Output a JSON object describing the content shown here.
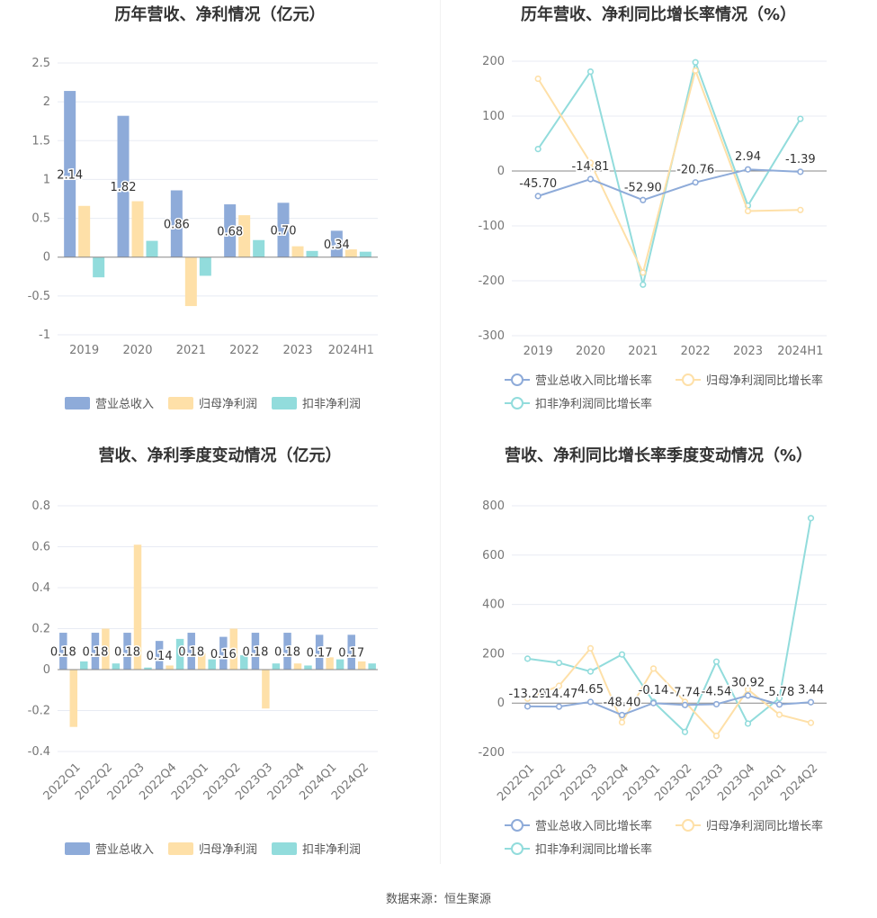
{
  "source_text": "数据来源：恒生聚源",
  "colors": {
    "revenue": "#8eabd9",
    "net_profit": "#fee0a8",
    "deducted": "#92dcdc",
    "grid": "#e8ebf3",
    "axis": "#888888",
    "label": "#333333"
  },
  "chart_data": [
    {
      "id": "annual-amounts",
      "type": "bar",
      "title": "历年营收、净利情况（亿元）",
      "categories": [
        "2019",
        "2020",
        "2021",
        "2022",
        "2023",
        "2024H1"
      ],
      "ylim": [
        -1,
        2.5
      ],
      "yticks": [
        "-1",
        "-0.5",
        "0",
        "0.5",
        "1",
        "1.5",
        "2",
        "2.5"
      ],
      "series": [
        {
          "name": "营业总收入",
          "values": [
            2.14,
            1.82,
            0.86,
            0.68,
            0.7,
            0.34
          ],
          "labels": [
            "2.14",
            "1.82",
            "0.86",
            "0.68",
            "0.70",
            "0.34"
          ]
        },
        {
          "name": "归母净利润",
          "values": [
            0.66,
            0.72,
            -0.63,
            0.54,
            0.14,
            0.1
          ]
        },
        {
          "name": "扣非净利润",
          "values": [
            -0.26,
            0.21,
            -0.24,
            0.22,
            0.08,
            0.07
          ]
        }
      ]
    },
    {
      "id": "annual-growth",
      "type": "line",
      "title": "历年营收、净利同比增长率情况（%）",
      "categories": [
        "2019",
        "2020",
        "2021",
        "2022",
        "2023",
        "2024H1"
      ],
      "ylim": [
        -300,
        200
      ],
      "yticks": [
        "-300",
        "-200",
        "-100",
        "0",
        "100",
        "200"
      ],
      "series": [
        {
          "name": "营业总收入同比增长率",
          "values": [
            -45.7,
            -14.81,
            -52.9,
            -20.76,
            2.94,
            -1.39
          ],
          "labels": [
            "-45.70",
            "-14.81",
            "-52.90",
            "-20.76",
            "2.94",
            "-1.39"
          ]
        },
        {
          "name": "归母净利润同比增长率",
          "values": [
            168,
            15,
            -185,
            183,
            -73,
            -71
          ]
        },
        {
          "name": "扣非净利润同比增长率",
          "values": [
            40,
            181,
            -207,
            198,
            -63,
            95
          ]
        }
      ]
    },
    {
      "id": "quarterly-amounts",
      "type": "bar",
      "title": "营收、净利季度变动情况（亿元）",
      "categories": [
        "2022Q1",
        "2022Q2",
        "2022Q3",
        "2022Q4",
        "2023Q1",
        "2023Q2",
        "2023Q3",
        "2023Q4",
        "2024Q1",
        "2024Q2"
      ],
      "ylim": [
        -0.4,
        0.8
      ],
      "yticks": [
        "-0.4",
        "-0.2",
        "0",
        "0.2",
        "0.4",
        "0.6",
        "0.8"
      ],
      "series": [
        {
          "name": "营业总收入",
          "values": [
            0.18,
            0.18,
            0.18,
            0.14,
            0.18,
            0.16,
            0.18,
            0.18,
            0.17,
            0.17
          ],
          "labels": [
            "0.18",
            "0.18",
            "0.18",
            "0.14",
            "0.18",
            "0.16",
            "0.18",
            "0.18",
            "0.17",
            "0.17"
          ]
        },
        {
          "name": "归母净利润",
          "values": [
            -0.28,
            0.2,
            0.61,
            0.02,
            0.08,
            0.2,
            -0.19,
            0.03,
            0.06,
            0.04
          ]
        },
        {
          "name": "扣非净利润",
          "values": [
            0.04,
            0.03,
            0.01,
            0.15,
            0.05,
            0.07,
            0.03,
            0.02,
            0.05,
            0.03
          ]
        }
      ]
    },
    {
      "id": "quarterly-growth",
      "type": "line",
      "title": "营收、净利同比增长率季度变动情况（%）",
      "categories": [
        "2022Q1",
        "2022Q2",
        "2022Q3",
        "2022Q4",
        "2023Q1",
        "2023Q2",
        "2023Q3",
        "2023Q4",
        "2024Q1",
        "2024Q2"
      ],
      "ylim": [
        -200,
        800
      ],
      "yticks": [
        "-200",
        "0",
        "200",
        "400",
        "600",
        "800"
      ],
      "series": [
        {
          "name": "营业总收入同比增长率",
          "values": [
            -13.29,
            -14.47,
            4.65,
            -48.4,
            -0.14,
            -7.74,
            -4.54,
            30.92,
            -5.78,
            3.44
          ],
          "labels": [
            "-13.29",
            "-14.47",
            "4.65",
            "-48.40",
            "-0.14",
            "-7.74",
            "-4.54",
            "30.92",
            "-5.78",
            "3.44"
          ]
        },
        {
          "name": "归母净利润同比增长率",
          "values": [
            18,
            70,
            222,
            -78,
            140,
            5,
            -133,
            55,
            -47,
            -80
          ]
        },
        {
          "name": "扣非净利润同比增长率",
          "values": [
            180,
            163,
            128,
            197,
            5,
            -117,
            168,
            -83,
            20,
            750
          ]
        }
      ]
    }
  ]
}
